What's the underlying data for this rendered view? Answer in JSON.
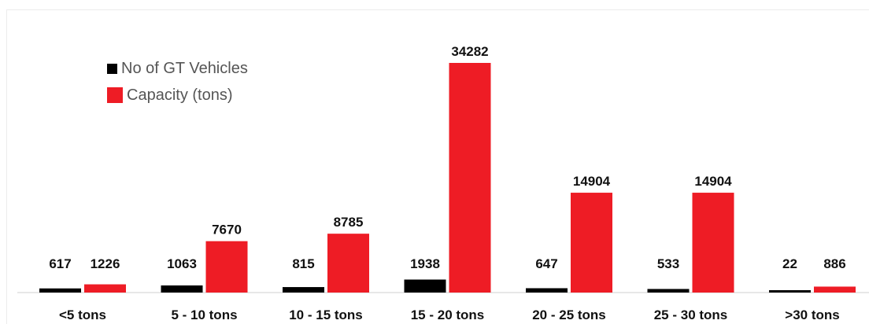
{
  "chart_data": {
    "type": "bar",
    "categories": [
      "<5 tons",
      "5 - 10 tons",
      "10 - 15 tons",
      "15 - 20 tons",
      "20 - 25 tons",
      "25 - 30 tons",
      ">30 tons"
    ],
    "series": [
      {
        "name": "No of GT Vehicles",
        "values": [
          617,
          1063,
          815,
          1938,
          647,
          533,
          22
        ],
        "color": "#000000"
      },
      {
        "name": "Capacity (tons)",
        "values": [
          1226,
          7670,
          8785,
          34282,
          14904,
          14904,
          886
        ],
        "color": "#ee1c25"
      }
    ],
    "ylim": [
      0,
      34282
    ],
    "grid": false,
    "legend_position": "top-left",
    "data_labels": true,
    "title": "",
    "xlabel": "",
    "ylabel": ""
  }
}
